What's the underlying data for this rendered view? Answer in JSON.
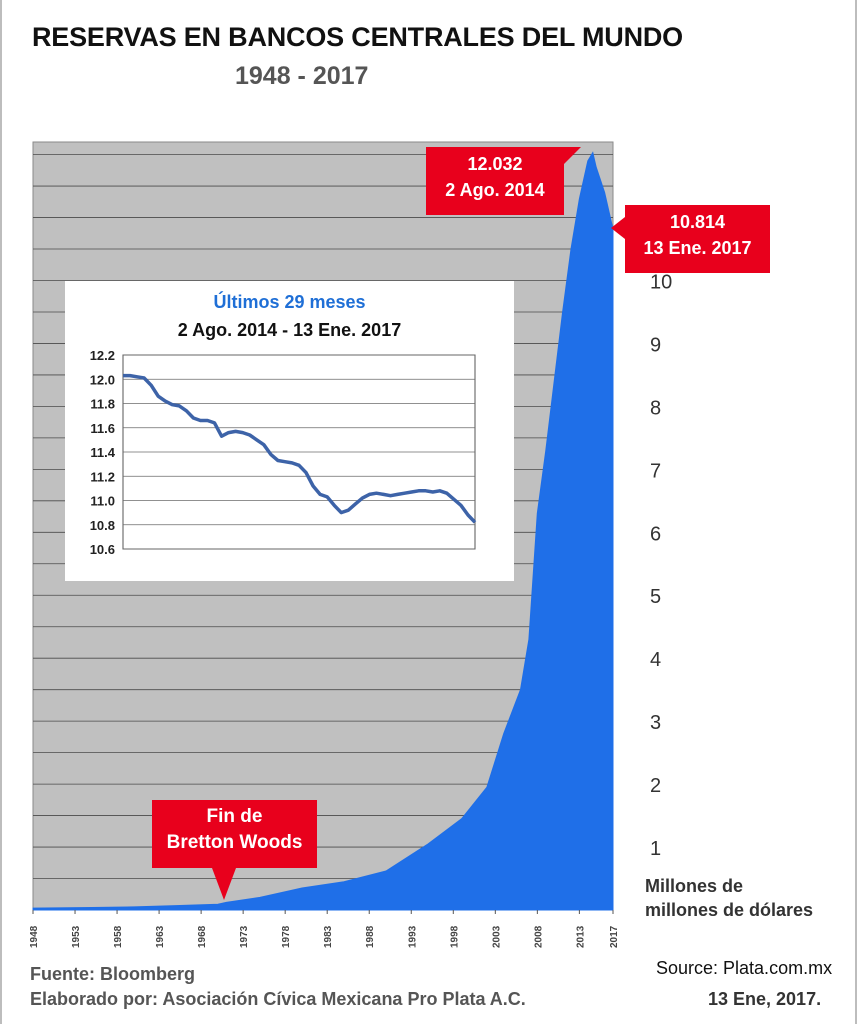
{
  "title": "RESERVAS EN BANCOS CENTRALES DEL MUNDO",
  "subtitle": "1948 - 2017",
  "annotations": {
    "peak": {
      "value": "12.032",
      "date": "2 Ago. 2014"
    },
    "last": {
      "value": "10.814",
      "date": "13 Ene. 2017"
    },
    "bretton_woods": {
      "line1": "Fin de",
      "line2": "Bretton Woods"
    }
  },
  "unit_label": {
    "line1": "Millones de",
    "line2": "millones de dólares"
  },
  "footer": {
    "fuente": "Fuente: Bloomberg",
    "elaborado": "Elaborado por: Asociación Cívica Mexicana Pro Plata A.C.",
    "source": "Source: Plata.com.mx",
    "date": "13 Ene, 2017."
  },
  "colors": {
    "fill": "#1f6fe8",
    "plot_bg": "#c0c0c0",
    "annotation": "#e8001c",
    "inset_line": "#3d63a8",
    "inset_title": "#1f6fd6"
  },
  "chart_data": [
    {
      "type": "area",
      "title": "RESERVAS EN BANCOS CENTRALES DEL MUNDO",
      "subtitle": "1948 - 2017",
      "ylabel": "Millones de millones de dólares",
      "xlabel": "",
      "x_ticks": [
        "1948",
        "1953",
        "1958",
        "1963",
        "1968",
        "1973",
        "1978",
        "1983",
        "1988",
        "1993",
        "1998",
        "2003",
        "2008",
        "2013",
        "2017"
      ],
      "y_ticks": [
        "1",
        "2",
        "3",
        "4",
        "5",
        "6",
        "7",
        "8",
        "9",
        "10"
      ],
      "xlim": [
        1948,
        2017
      ],
      "ylim": [
        0,
        12.2
      ],
      "grid": true,
      "x": [
        1948,
        1955,
        1960,
        1965,
        1970,
        1971,
        1975,
        1980,
        1985,
        1990,
        1995,
        1999,
        2002,
        2004,
        2006,
        2007,
        2008,
        2009,
        2010,
        2011,
        2012,
        2013,
        2014,
        2014.6,
        2015,
        2016,
        2017
      ],
      "values": [
        0.03,
        0.04,
        0.05,
        0.07,
        0.09,
        0.12,
        0.2,
        0.35,
        0.45,
        0.62,
        1.05,
        1.45,
        1.95,
        2.8,
        3.5,
        4.3,
        6.3,
        7.3,
        8.4,
        9.5,
        10.5,
        11.3,
        11.9,
        12.032,
        11.8,
        11.4,
        10.814
      ],
      "annotations": [
        {
          "x": 2014.6,
          "y": 12.032,
          "label": "12.032",
          "date": "2 Ago. 2014"
        },
        {
          "x": 2017,
          "y": 10.814,
          "label": "10.814",
          "date": "13 Ene. 2017"
        },
        {
          "x": 1971,
          "label": "Fin de Bretton Woods"
        }
      ]
    },
    {
      "type": "line",
      "title": "Últimos 29 meses",
      "subtitle": "2 Ago. 2014 - 13 Ene. 2017",
      "y_ticks": [
        "12.2",
        "12.0",
        "11.8",
        "11.6",
        "11.4",
        "11.2",
        "11.0",
        "10.8",
        "10.6"
      ],
      "ylim": [
        10.6,
        12.2
      ],
      "grid": true,
      "x": [
        0,
        2,
        4,
        6,
        8,
        10,
        12,
        14,
        16,
        18,
        20,
        22,
        24,
        26,
        28,
        30,
        32,
        34,
        36,
        38,
        40,
        42,
        44,
        46,
        48,
        50,
        52,
        54,
        56,
        58,
        60,
        62,
        64,
        66,
        68,
        70,
        72,
        74,
        76,
        78,
        80,
        82,
        84,
        86,
        88,
        90,
        92,
        94,
        96,
        98,
        100
      ],
      "values": [
        12.03,
        12.03,
        12.02,
        12.01,
        11.95,
        11.86,
        11.82,
        11.79,
        11.78,
        11.74,
        11.68,
        11.66,
        11.66,
        11.64,
        11.53,
        11.56,
        11.57,
        11.56,
        11.54,
        11.5,
        11.46,
        11.38,
        11.33,
        11.32,
        11.31,
        11.29,
        11.23,
        11.12,
        11.05,
        11.03,
        10.96,
        10.9,
        10.92,
        10.97,
        11.02,
        11.05,
        11.06,
        11.05,
        11.04,
        11.05,
        11.06,
        11.07,
        11.08,
        11.08,
        11.07,
        11.08,
        11.06,
        11.01,
        10.96,
        10.88,
        10.82
      ]
    }
  ]
}
